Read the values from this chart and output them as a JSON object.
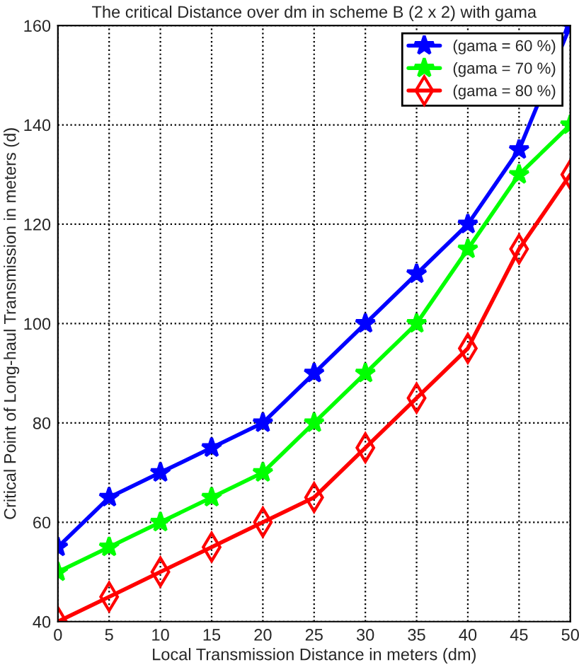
{
  "chart_data": {
    "type": "line",
    "title": "The critical Distance over dm in scheme B (2 x 2) with gama",
    "xlabel": "Local Transmission Distance in meters (dm)",
    "ylabel": "Critical Point of Long-haul Transmission in meters (d)",
    "x": [
      0,
      5,
      10,
      15,
      20,
      25,
      30,
      35,
      40,
      45,
      50
    ],
    "series": [
      {
        "name": "(gama = 60 %)",
        "color": "#0000ff",
        "marker": "star",
        "values": [
          55,
          65,
          70,
          75,
          80,
          90,
          100,
          110,
          120,
          135,
          160
        ]
      },
      {
        "name": "(gama = 70 %)",
        "color": "#00ff00",
        "marker": "star",
        "values": [
          50,
          55,
          60,
          65,
          70,
          80,
          90,
          100,
          115,
          130,
          140
        ]
      },
      {
        "name": "(gama = 80 %)",
        "color": "#ff0000",
        "marker": "diamond",
        "values": [
          40,
          45,
          50,
          55,
          60,
          65,
          75,
          85,
          95,
          115,
          130
        ]
      }
    ],
    "xlim": [
      0,
      50
    ],
    "ylim": [
      40,
      160
    ],
    "xticks": [
      0,
      5,
      10,
      15,
      20,
      25,
      30,
      35,
      40,
      45,
      50
    ],
    "yticks": [
      40,
      60,
      80,
      100,
      120,
      140,
      160
    ],
    "grid": true,
    "legend": "top right",
    "line_style": "solid"
  }
}
